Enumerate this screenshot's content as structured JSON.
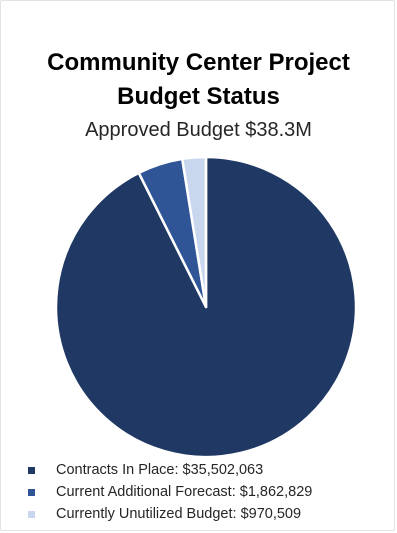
{
  "chart_data": {
    "type": "pie",
    "title_line1": "Community Center Project",
    "title_line2": "Budget Status",
    "subtitle": "Approved Budget $38.3M",
    "slices": [
      {
        "label": "Contracts In Place: $35,502,063",
        "value": 35502063,
        "color": "#1f3864"
      },
      {
        "label": "Current Additional Forecast: $1,862,829",
        "value": 1862829,
        "color": "#2f5597"
      },
      {
        "label": "Currently Unutilized Budget: $970,509",
        "value": 970509,
        "color": "#c9d7ee"
      }
    ],
    "legend_position": "bottom-left"
  }
}
